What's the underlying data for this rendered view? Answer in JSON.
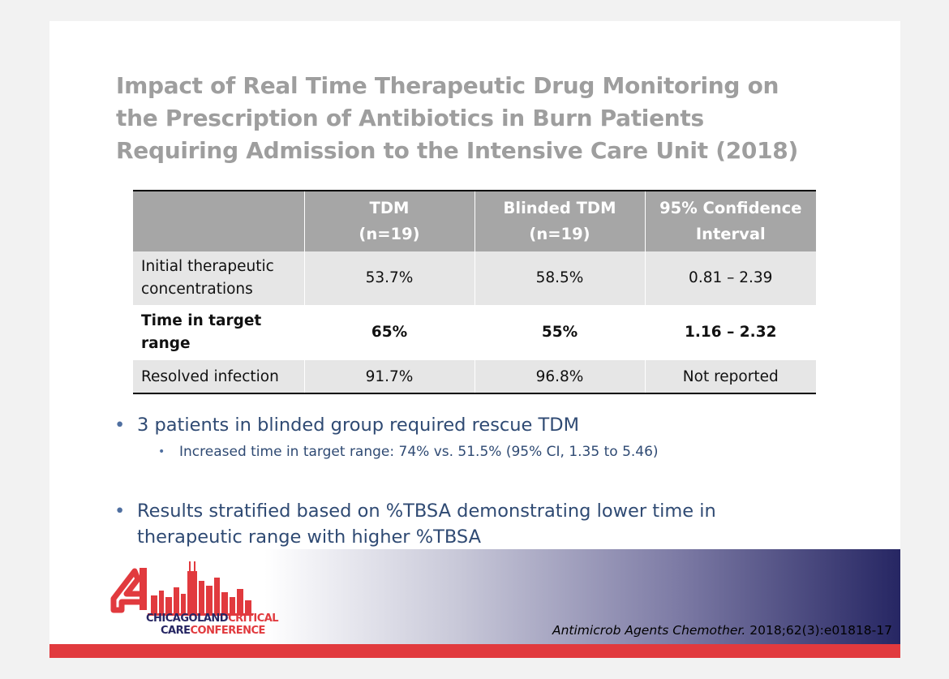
{
  "slide": {
    "title": "Impact of Real Time Therapeutic Drug Monitoring on the Prescription of Antibiotics in Burn Patients Requiring Admission to the Intensive Care Unit (2018)",
    "table": {
      "headers": [
        {
          "line1": "",
          "line2": ""
        },
        {
          "line1": "TDM",
          "line2": "(n=19)"
        },
        {
          "line1": "Blinded TDM",
          "line2": "(n=19)"
        },
        {
          "line1": "95% Confidence",
          "line2": "Interval"
        }
      ],
      "rows": [
        {
          "label_line1": "Initial therapeutic",
          "label_line2": "concentrations",
          "tdm": "53.7%",
          "blinded": "58.5%",
          "ci": "0.81 – 2.39"
        },
        {
          "label_line1": "Time in target",
          "label_line2": "range",
          "tdm": "65%",
          "blinded": "55%",
          "ci": "1.16 – 2.32"
        },
        {
          "label_line1": "Resolved infection",
          "label_line2": "",
          "tdm": "91.7%",
          "blinded": "96.8%",
          "ci": "Not reported"
        }
      ]
    },
    "bullets": [
      {
        "text": "3 patients in blinded group required rescue TDM",
        "sub": "Increased time in target range: 74% vs. 51.5% (95% CI, 1.35 to 5.46)"
      },
      {
        "text_line1": "Results stratified based on %TBSA demonstrating lower time in",
        "text_line2": "therapeutic range with higher %TBSA"
      }
    ],
    "citation": {
      "journal": "Antimicrob Agents Chemother.",
      "ref": " 2018;62(3):e01818-17"
    },
    "logo": {
      "line1a": "CHICAGOLAND",
      "line1b": "CRITICAL",
      "line2a": "CARE",
      "line2b": "CONFERENCE"
    },
    "colors": {
      "title": "#9e9e9e",
      "header_bg": "#a6a6a6",
      "row_shade": "#e6e6e6",
      "bullet_text": "#2f4a73",
      "accent_red": "#e13a3e",
      "accent_navy": "#262663"
    }
  }
}
